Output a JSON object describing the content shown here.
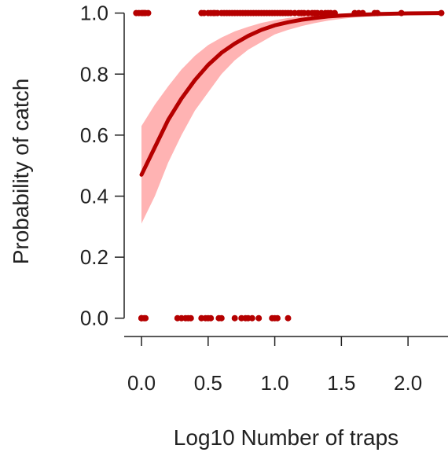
{
  "chart_data": {
    "type": "scatter",
    "title": "",
    "xlabel": "Log10 Number of traps",
    "ylabel": "Probability of catch",
    "xlim": [
      -0.13,
      2.3
    ],
    "ylim": [
      -0.06,
      1.03
    ],
    "x_ticks": [
      "0.0",
      "0.5",
      "1.0",
      "1.5",
      "2.0"
    ],
    "x_tick_values": [
      0,
      0.5,
      1,
      1.5,
      2
    ],
    "y_ticks": [
      "0.0",
      "0.2",
      "0.4",
      "0.6",
      "0.8",
      "1.0"
    ],
    "y_tick_values": [
      0,
      0.2,
      0.4,
      0.6,
      0.8,
      1
    ],
    "grid": false,
    "legend": "none",
    "colors": {
      "fit": "#b50000",
      "band": "#ffb3b3",
      "points": "#b50000"
    },
    "series": [
      {
        "kind": "fitted-line",
        "x": [
          0,
          0.1,
          0.2,
          0.3,
          0.4,
          0.5,
          0.6,
          0.7,
          0.8,
          0.9,
          1.0,
          1.1,
          1.2,
          1.3,
          1.4,
          1.5,
          1.6,
          1.8,
          2.0,
          2.25
        ],
        "values": [
          0.47,
          0.56,
          0.65,
          0.72,
          0.78,
          0.83,
          0.87,
          0.9,
          0.925,
          0.945,
          0.96,
          0.97,
          0.978,
          0.984,
          0.989,
          0.992,
          0.994,
          0.997,
          0.999,
          1.0
        ]
      },
      {
        "kind": "confidence-band",
        "x": [
          0,
          0.1,
          0.2,
          0.3,
          0.4,
          0.5,
          0.6,
          0.7,
          0.8,
          0.9,
          1.0,
          1.1,
          1.2,
          1.3,
          1.4,
          1.5,
          1.6,
          1.8,
          2.0,
          2.25
        ],
        "lower": [
          0.31,
          0.4,
          0.51,
          0.6,
          0.68,
          0.74,
          0.8,
          0.845,
          0.88,
          0.905,
          0.93,
          0.945,
          0.957,
          0.967,
          0.975,
          0.981,
          0.986,
          0.992,
          0.996,
          0.999
        ],
        "upper": [
          0.63,
          0.7,
          0.76,
          0.815,
          0.86,
          0.895,
          0.92,
          0.94,
          0.955,
          0.968,
          0.977,
          0.984,
          0.989,
          0.992,
          0.995,
          0.997,
          0.998,
          0.999,
          1.0,
          1.0
        ]
      },
      {
        "kind": "observations",
        "x": [
          0,
          0,
          0,
          0.02,
          0.03,
          0.27,
          0.3,
          0.33,
          0.35,
          0.37,
          0.45,
          0.48,
          0.5,
          0.52,
          0.58,
          0.6,
          0.7,
          0.75,
          0.78,
          0.8,
          0.83,
          0.88,
          0.98,
          1.0,
          1.02,
          1.1
        ],
        "values": [
          0,
          0,
          0,
          0,
          0,
          0,
          0,
          0,
          0,
          0,
          0,
          0,
          0,
          0,
          0,
          0,
          0,
          0,
          0,
          0,
          0,
          0,
          0,
          0,
          0,
          0
        ]
      },
      {
        "kind": "observations",
        "x": [
          -0.04,
          -0.02,
          0,
          0.01,
          0.02,
          0.03,
          0.05,
          0.45,
          0.47,
          0.5,
          0.52,
          0.54,
          0.55,
          0.57,
          0.6,
          0.62,
          0.64,
          0.66,
          0.68,
          0.7,
          0.72,
          0.74,
          0.76,
          0.78,
          0.8,
          0.82,
          0.84,
          0.86,
          0.88,
          0.9,
          0.92,
          0.94,
          0.96,
          0.98,
          1.0,
          1.02,
          1.04,
          1.06,
          1.08,
          1.1,
          1.12,
          1.15,
          1.18,
          1.2,
          1.22,
          1.25,
          1.28,
          1.3,
          1.32,
          1.35,
          1.38,
          1.4,
          1.42,
          1.45,
          1.6,
          1.63,
          1.66,
          1.75,
          1.77,
          1.95,
          2.25
        ],
        "values": [
          1,
          1,
          1,
          1,
          1,
          1,
          1,
          1,
          1,
          1,
          1,
          1,
          1,
          1,
          1,
          1,
          1,
          1,
          1,
          1,
          1,
          1,
          1,
          1,
          1,
          1,
          1,
          1,
          1,
          1,
          1,
          1,
          1,
          1,
          1,
          1,
          1,
          1,
          1,
          1,
          1,
          1,
          1,
          1,
          1,
          1,
          1,
          1,
          1,
          1,
          1,
          1,
          1,
          1,
          1,
          1,
          1,
          1,
          1,
          1,
          1
        ]
      }
    ]
  }
}
